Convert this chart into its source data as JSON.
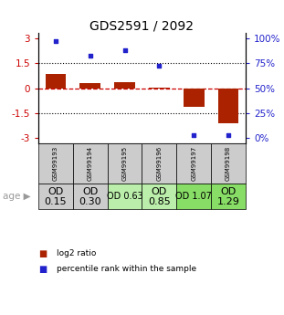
{
  "title": "GDS2591 / 2092",
  "samples": [
    "GSM99193",
    "GSM99194",
    "GSM99195",
    "GSM99196",
    "GSM99197",
    "GSM99198"
  ],
  "log2_ratio": [
    0.85,
    0.3,
    0.35,
    0.05,
    -1.1,
    -2.1
  ],
  "percentile_rank": [
    97,
    82,
    88,
    72,
    3,
    3
  ],
  "bar_color": "#aa2200",
  "dot_color": "#2222cc",
  "yticks_left": [
    -3,
    -1.5,
    0,
    1.5,
    3
  ],
  "yticks_right_vals": [
    -3,
    -1.5,
    0,
    1.5,
    3
  ],
  "yticks_right_labels": [
    "0%",
    "25%",
    "50%",
    "75%",
    "100%"
  ],
  "ylim": [
    -3.3,
    3.3
  ],
  "dotted_lines": [
    -1.5,
    1.5
  ],
  "age_labels": [
    "OD\n0.15",
    "OD\n0.30",
    "OD 0.63",
    "OD\n0.85",
    "OD 1.07",
    "OD\n1.29"
  ],
  "age_font_sizes": [
    8,
    8,
    7,
    8,
    7,
    8
  ],
  "age_bg_colors": [
    "#cccccc",
    "#cccccc",
    "#bbeeaa",
    "#bbeeaa",
    "#88dd66",
    "#88dd66"
  ],
  "gsm_bg_color": "#cccccc",
  "legend_red_label": "log2 ratio",
  "legend_blue_label": "percentile rank within the sample"
}
